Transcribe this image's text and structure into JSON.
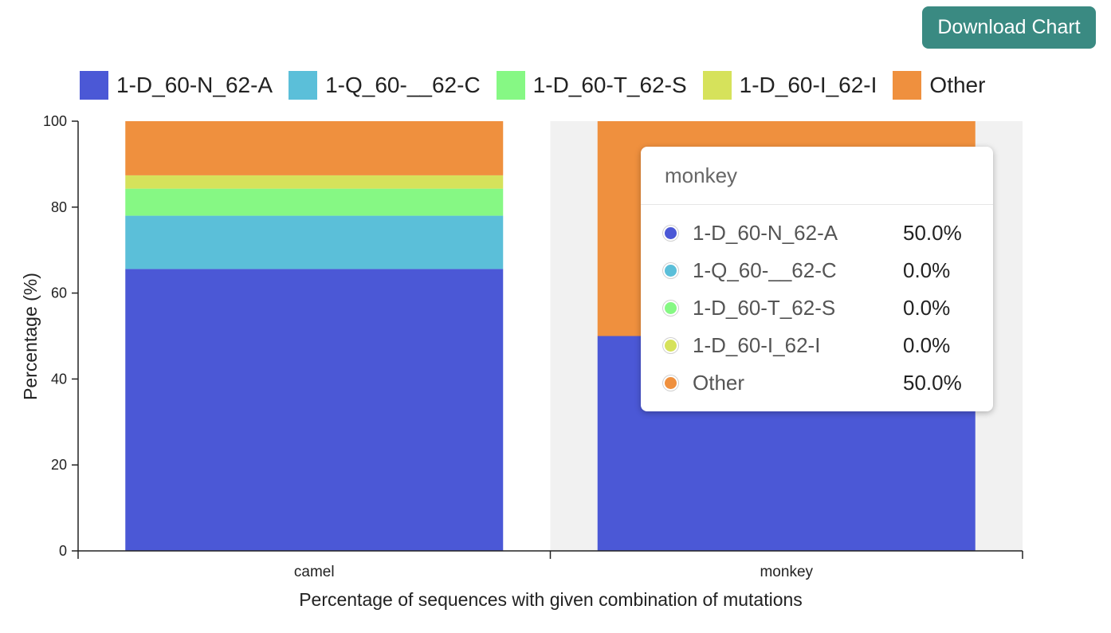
{
  "toolbar": {
    "download_label": "Download Chart"
  },
  "legend": [
    {
      "label": "1-D_60-N_62-A",
      "color": "#4b58d6"
    },
    {
      "label": "1-Q_60-__62-C",
      "color": "#5bbfd9"
    },
    {
      "label": "1-D_60-T_62-S",
      "color": "#86f884"
    },
    {
      "label": "1-D_60-I_62-I",
      "color": "#d6e25b"
    },
    {
      "label": "Other",
      "color": "#ef903e"
    }
  ],
  "chart_data": {
    "type": "bar",
    "stacked": true,
    "categories": [
      "camel",
      "monkey"
    ],
    "series": [
      {
        "name": "1-D_60-N_62-A",
        "color": "#4b58d6",
        "values": [
          65.6,
          50.0
        ]
      },
      {
        "name": "1-Q_60-__62-C",
        "color": "#5bbfd9",
        "values": [
          12.4,
          0.0
        ]
      },
      {
        "name": "1-D_60-T_62-S",
        "color": "#86f884",
        "values": [
          6.3,
          0.0
        ]
      },
      {
        "name": "1-D_60-I_62-I",
        "color": "#d6e25b",
        "values": [
          3.1,
          0.0
        ]
      },
      {
        "name": "Other",
        "color": "#ef903e",
        "values": [
          12.6,
          50.0
        ]
      }
    ],
    "xlabel": "Percentage of sequences with given combination of mutations",
    "ylabel": "Percentage (%)",
    "ylim": [
      0,
      100
    ],
    "yticks": [
      0,
      20,
      40,
      60,
      80,
      100
    ],
    "highlighted_category": "monkey",
    "highlight_color": "#f1f1f1",
    "grid": false
  },
  "tooltip": {
    "title": "monkey",
    "rows": [
      {
        "name": "1-D_60-N_62-A",
        "value": "50.0%",
        "color": "#4b58d6"
      },
      {
        "name": "1-Q_60-__62-C",
        "value": "0.0%",
        "color": "#5bbfd9"
      },
      {
        "name": "1-D_60-T_62-S",
        "value": "0.0%",
        "color": "#86f884"
      },
      {
        "name": "1-D_60-I_62-I",
        "value": "0.0%",
        "color": "#d6e25b"
      },
      {
        "name": "Other",
        "value": "50.0%",
        "color": "#ef903e"
      }
    ]
  }
}
